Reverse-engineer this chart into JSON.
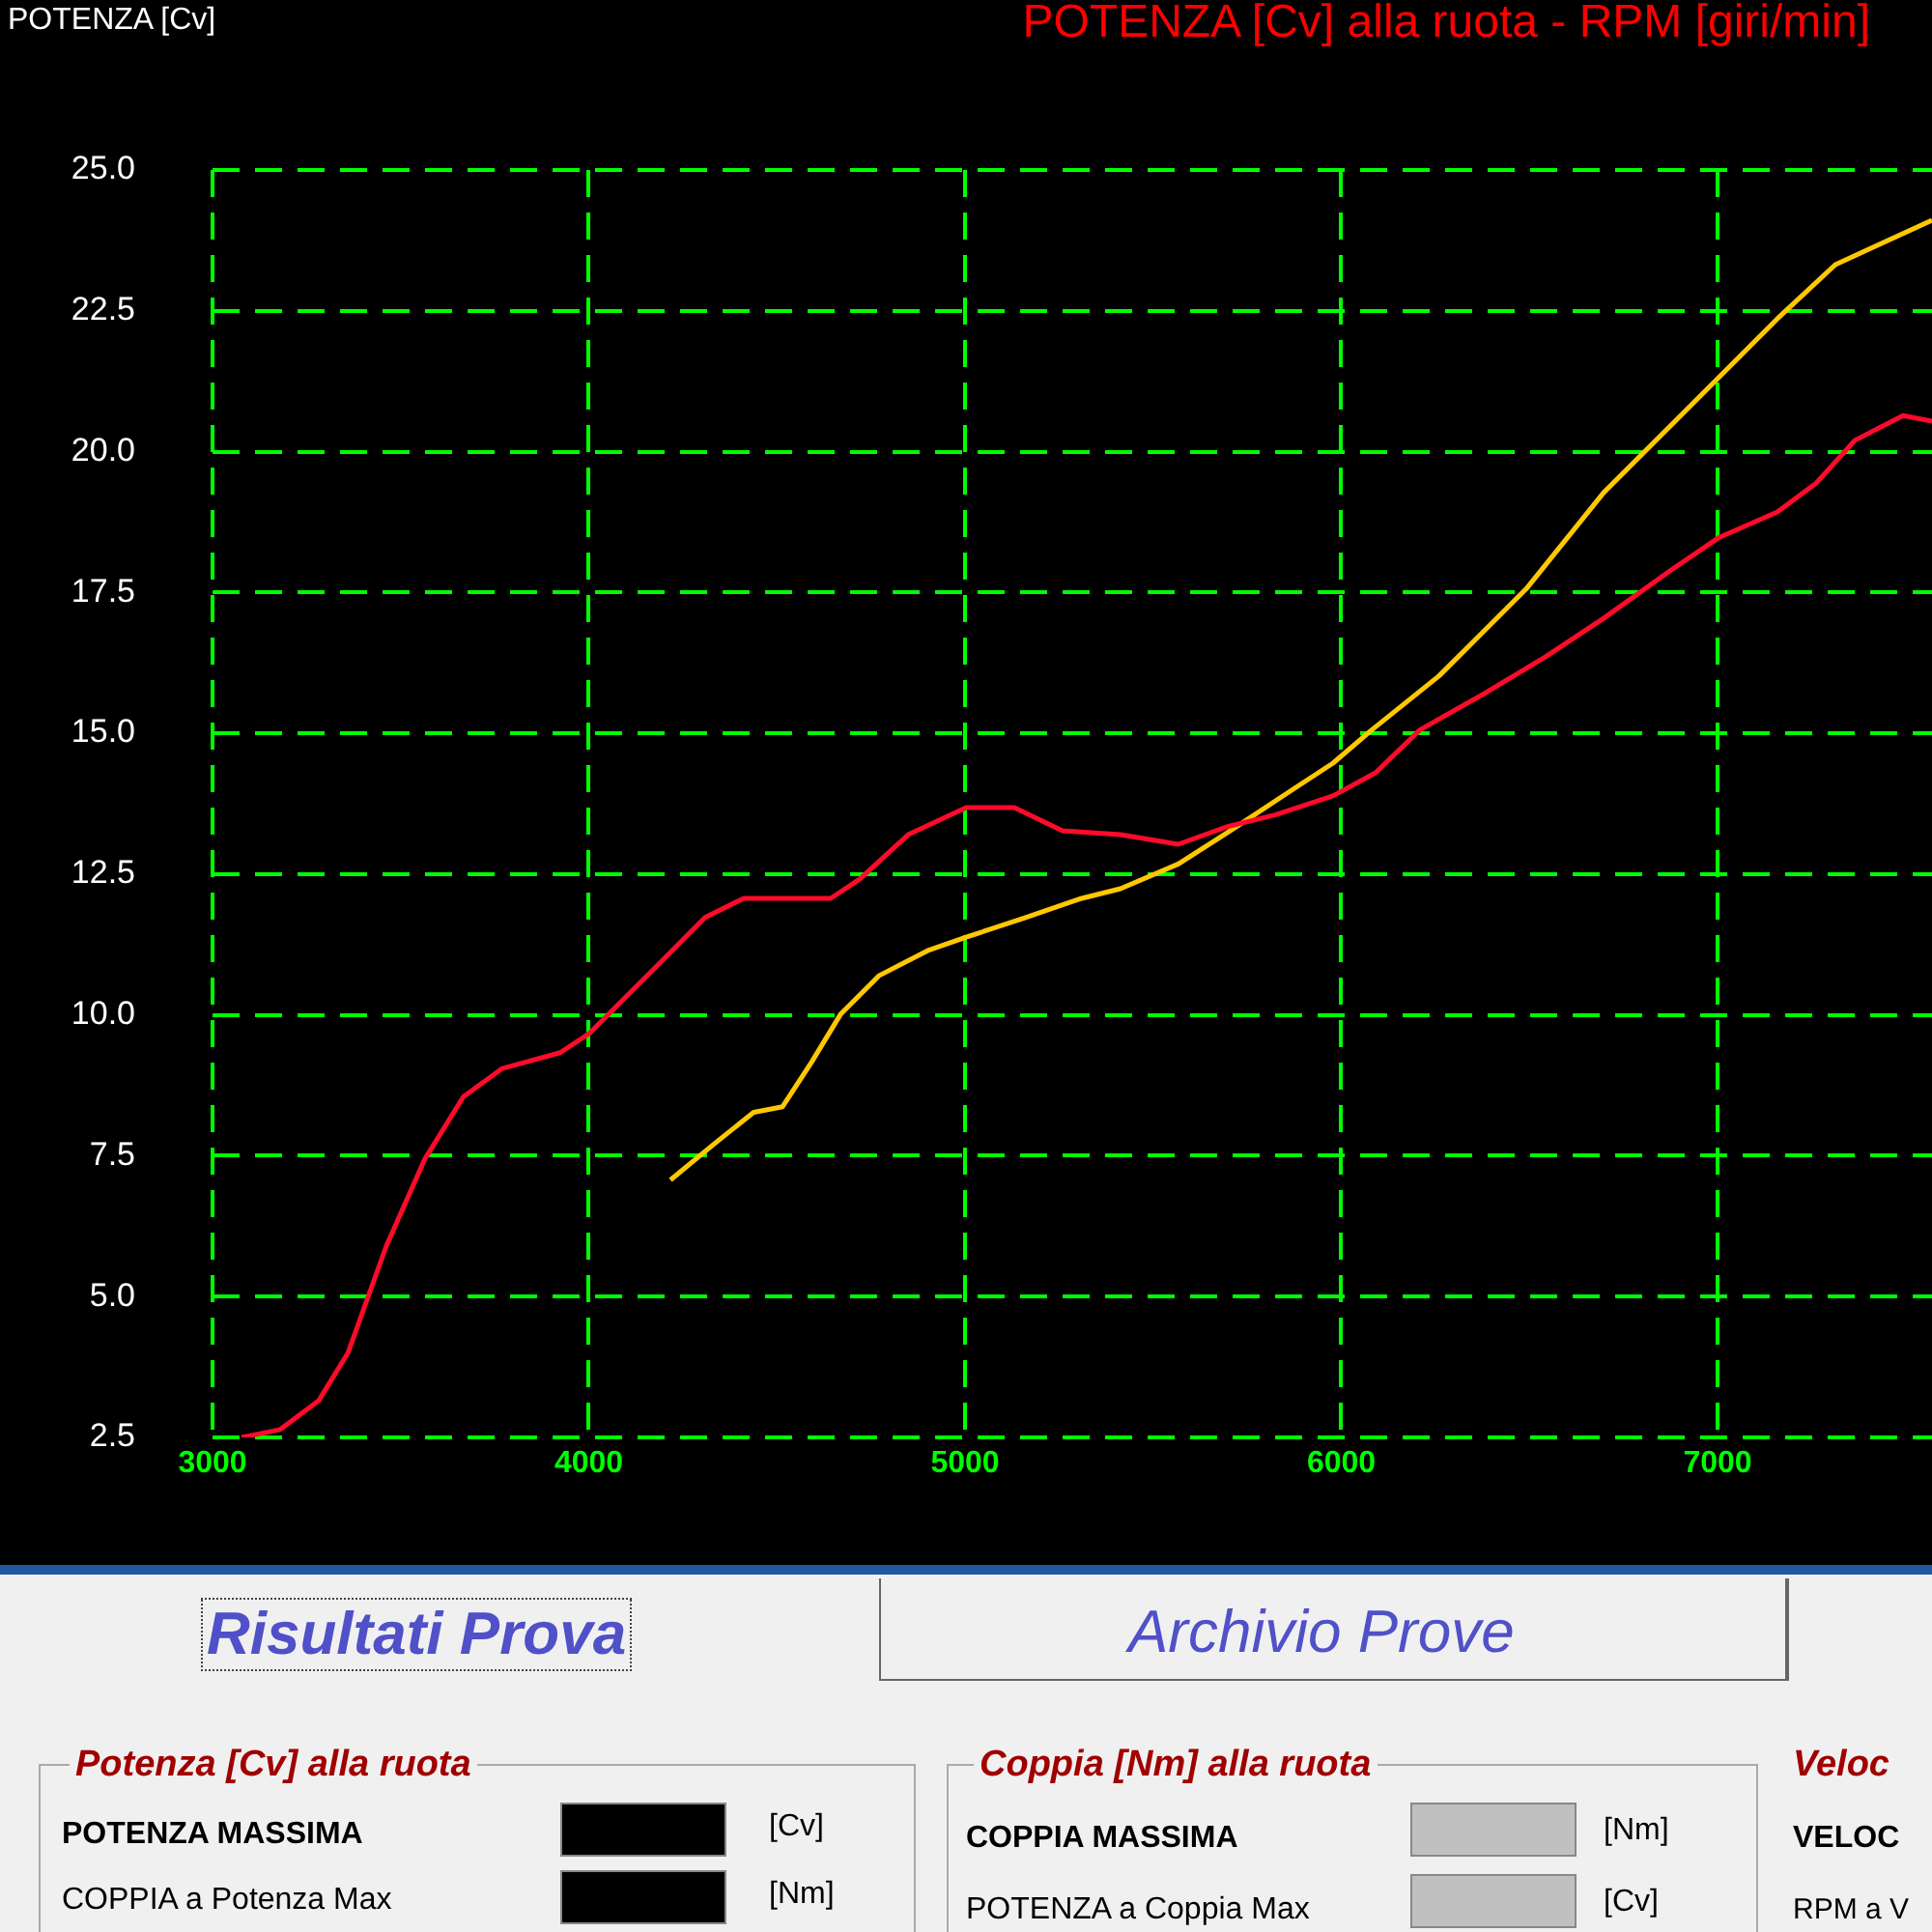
{
  "chart_data": {
    "type": "line",
    "title": "POTENZA [Cv] alla ruota - RPM [giri/min]",
    "ylabel": "POTENZA [Cv]",
    "xlim": [
      3000,
      7570
    ],
    "xticks": [
      3000,
      4000,
      5000,
      6000,
      7000
    ],
    "ylim": [
      2.5,
      25
    ],
    "yticks": [
      {
        "value": 2.5,
        "label": "2.5"
      },
      {
        "value": 5,
        "label": "5.0"
      },
      {
        "value": 7.5,
        "label": "7.5"
      },
      {
        "value": 10,
        "label": "10.0"
      },
      {
        "value": 12.5,
        "label": "12.5"
      },
      {
        "value": 15,
        "label": "15.0"
      },
      {
        "value": 17.5,
        "label": "17.5"
      },
      {
        "value": 20,
        "label": "20.0"
      },
      {
        "value": 22.5,
        "label": "22.5"
      },
      {
        "value": 25,
        "label": "25.0"
      }
    ],
    "grid": true,
    "legend": false,
    "marker": "none",
    "line_style": "solid",
    "series": [
      {
        "color": "#ff0a2a",
        "x": [
          3077,
          3180,
          3282,
          3360,
          3462,
          3565,
          3667,
          3770,
          3924,
          4001,
          4181,
          4309,
          4412,
          4643,
          4720,
          4849,
          5003,
          5131,
          5259,
          5413,
          5567,
          5696,
          5824,
          5978,
          6091,
          6209,
          6389,
          6543,
          6697,
          6877,
          7005,
          7159,
          7262,
          7365,
          7493,
          7570
        ],
        "values": [
          2.5,
          2.64,
          3.15,
          4.0,
          5.9,
          7.45,
          8.55,
          9.05,
          9.33,
          9.67,
          10.87,
          11.73,
          12.07,
          12.07,
          12.41,
          13.2,
          13.68,
          13.68,
          13.27,
          13.2,
          13.03,
          13.34,
          13.55,
          13.89,
          14.3,
          15.06,
          15.74,
          16.36,
          17.04,
          17.9,
          18.48,
          18.93,
          19.44,
          20.2,
          20.64,
          20.54
        ]
      },
      {
        "color": "#ffc800",
        "x": [
          4217,
          4335,
          4438,
          4515,
          4592,
          4669,
          4772,
          4900,
          5003,
          5157,
          5310,
          5413,
          5567,
          5721,
          5875,
          5978,
          6081,
          6260,
          6491,
          6697,
          6902,
          7159,
          7313,
          7570
        ],
        "values": [
          7.07,
          7.72,
          8.27,
          8.37,
          9.16,
          10.01,
          10.7,
          11.14,
          11.38,
          11.72,
          12.07,
          12.24,
          12.68,
          13.34,
          14.02,
          14.47,
          15.06,
          16.02,
          17.56,
          19.27,
          20.64,
          22.36,
          23.32,
          24.11
        ]
      }
    ],
    "annotations": [
      "Risultati Prova",
      "Archivio Prove",
      "Potenza [Cv] alla ruota",
      "POTENZA MASSIMA",
      "[Cv]",
      "COPPIA a Potenza Max",
      "[Nm]",
      "Coppia [Nm] alla ruota",
      "COPPIA MASSIMA",
      "[Nm]",
      "POTENZA a Coppia Max",
      "[Cv]",
      "Veloc",
      "VELOC",
      "RPM a V"
    ]
  }
}
